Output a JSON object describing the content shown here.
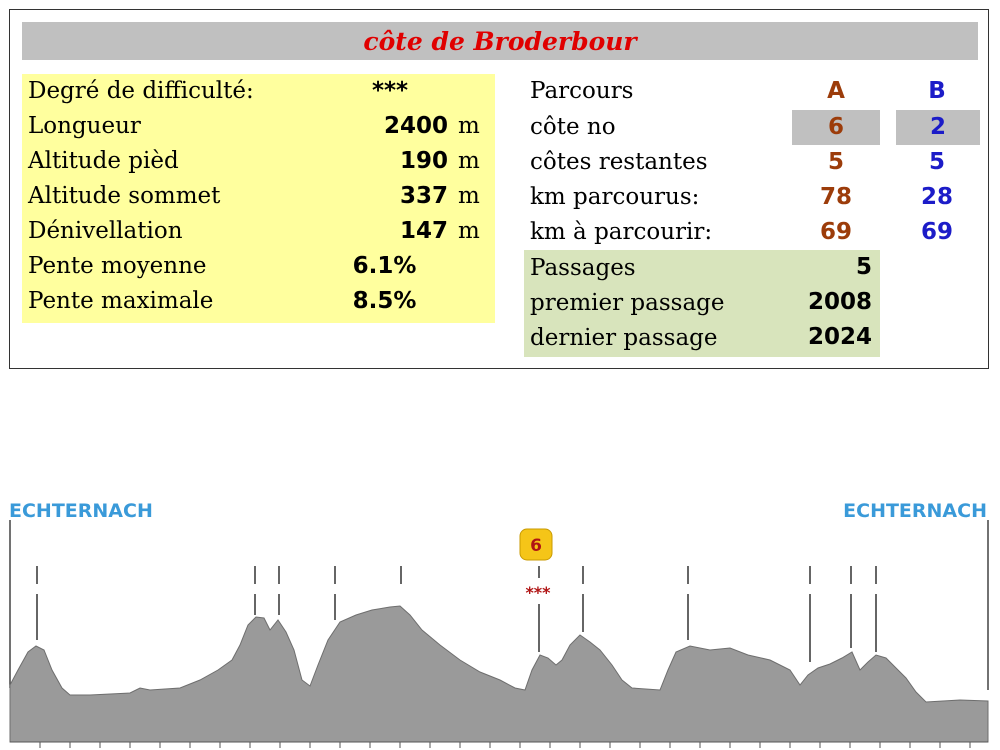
{
  "title": "côte de Broderbour",
  "stats": {
    "difficulty_label": "Degré de difficulté:",
    "difficulty_value": "***",
    "length_label": "Longueur",
    "length_value": "2400",
    "length_unit": "m",
    "alt_foot_label": "Altitude pièd",
    "alt_foot_value": "190",
    "alt_foot_unit": "m",
    "alt_top_label": "Altitude sommet",
    "alt_top_value": "337",
    "alt_top_unit": "m",
    "elev_label": "Dénivellation",
    "elev_value": "147",
    "elev_unit": "m",
    "avg_slope_label": "Pente moyenne",
    "avg_slope_value": "6.1%",
    "max_slope_label": "Pente maximale",
    "max_slope_value": "8.5%"
  },
  "route": {
    "header_label": "Parcours",
    "col_a": "A",
    "col_b": "B",
    "climb_no_label": "côte no",
    "climb_no_a": "6",
    "climb_no_b": "2",
    "remaining_label": "côtes restantes",
    "remaining_a": "5",
    "remaining_b": "5",
    "km_done_label": "km parcourus:",
    "km_done_a": "78",
    "km_done_b": "28",
    "km_left_label": "km à parcourir:",
    "km_left_a": "69",
    "km_left_b": "69"
  },
  "history": {
    "passages_label": "Passages",
    "passages_value": "5",
    "first_label": "premier passage",
    "first_value": "2008",
    "last_label": "dernier passage",
    "last_value": "2024"
  },
  "profile": {
    "start_town": "ECHTERNACH",
    "end_town": "ECHTERNACH",
    "badge_number": "6",
    "badge_stars": "***",
    "colors": {
      "fill": "#9a9a9a",
      "stroke": "#6e6e6e",
      "town": "#3a9ad9",
      "badge_bg": "#f5c518",
      "badge_text": "#b01414"
    }
  }
}
